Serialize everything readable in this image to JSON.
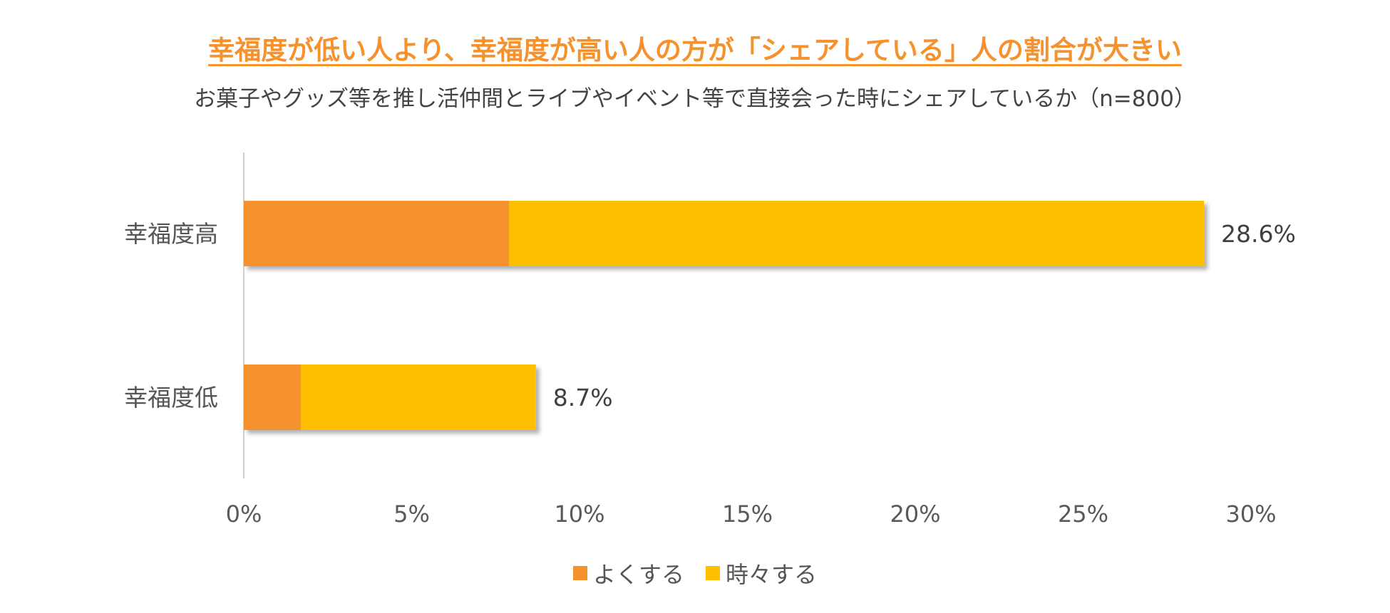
{
  "title": "幸福度が低い人より、幸福度が高い人の方が「シェアしている」人の割合が大きい",
  "subtitle": "お菓子やグッズ等を推し活仲間とライブやイベント等で直接会った時にシェアしているか（n=800）",
  "colors": {
    "title": "#F5922E",
    "often": "#F5922E",
    "sometimes": "#FFBF00",
    "axis": "#D0D0D0"
  },
  "chart_data": {
    "type": "bar",
    "orientation": "horizontal",
    "stacked": true,
    "categories": [
      "幸福度高",
      "幸福度低"
    ],
    "series": [
      {
        "name": "よくする",
        "values": [
          7.9,
          1.7
        ]
      },
      {
        "name": "時々する",
        "values": [
          20.7,
          7.0
        ]
      }
    ],
    "totals": [
      28.6,
      8.7
    ],
    "total_labels": [
      "28.6%",
      "8.7%"
    ],
    "xlim": [
      0,
      30
    ],
    "xticks": [
      0,
      5,
      10,
      15,
      20,
      25,
      30
    ],
    "xtick_labels": [
      "0%",
      "5%",
      "10%",
      "15%",
      "20%",
      "25%",
      "30%"
    ],
    "grid": false,
    "legend_position": "bottom"
  }
}
